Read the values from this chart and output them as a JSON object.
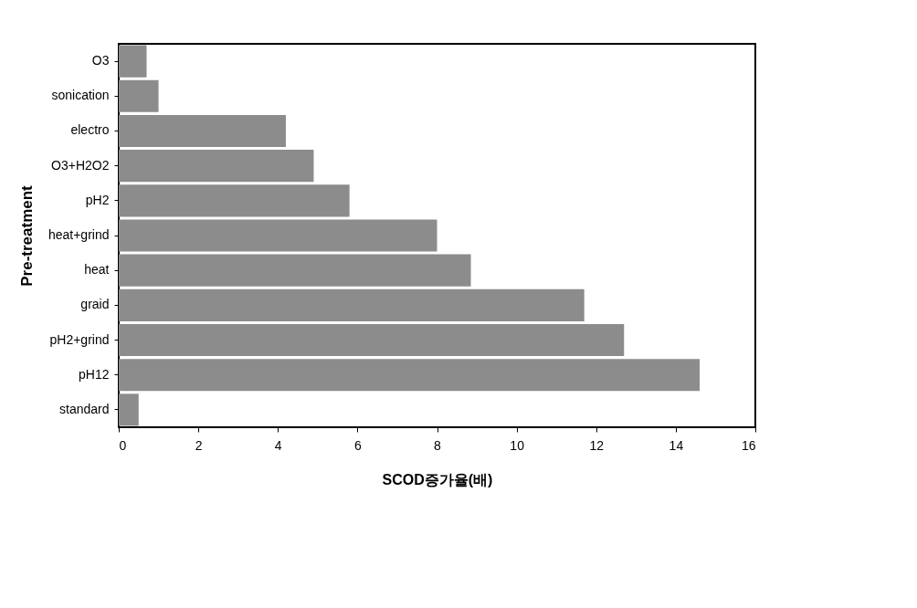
{
  "chart_data": {
    "type": "bar",
    "orientation": "horizontal",
    "xlabel": "SCOD증가율(배)",
    "ylabel": "Pre-treatment",
    "categories": [
      "O3",
      "sonication",
      "electro",
      "O3+H2O2",
      "pH2",
      "heat+grind",
      "heat",
      "graid",
      "pH2+grind",
      "pH12",
      "standard"
    ],
    "values": [
      0.7,
      1.0,
      4.2,
      4.9,
      5.8,
      8.0,
      8.85,
      11.7,
      12.7,
      14.6,
      0.5
    ],
    "color": "#8c8c8c",
    "xlim": [
      0,
      16
    ],
    "xticks": [
      0,
      2,
      4,
      6,
      8,
      10,
      12,
      14,
      16
    ],
    "grid": false
  }
}
